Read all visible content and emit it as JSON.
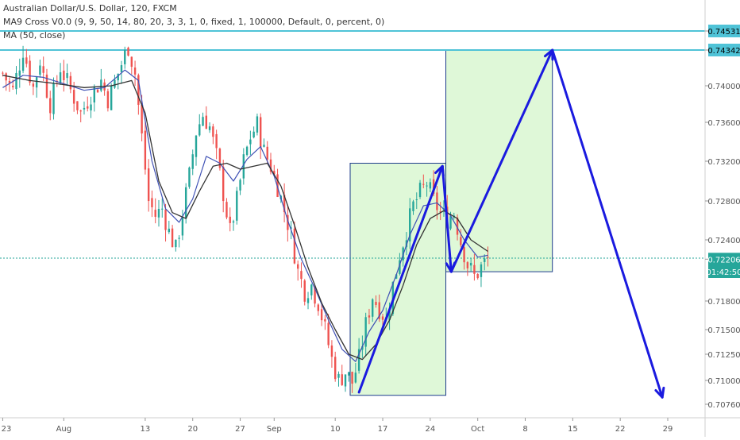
{
  "header": {
    "symbol_line": "Australian Dollar/U.S. Dollar, 120, FXCM",
    "indicator_1": "MA9 Cross V0.0 (9, 9, 50, 14, 80, 20, 3, 3, 1, 0, fixed, 1, 100000, Default, 0, percent, 0)",
    "indicator_2": "MA (50, close)"
  },
  "colors": {
    "up": "#26a69a",
    "down": "#ef5350",
    "ma_fast": "#3f51b5",
    "ma_slow": "#333333",
    "horizontal_line": "#4fc3d7",
    "drawing": "#1a1adf",
    "zone_fill": "#d9f7d1",
    "zone_border": "#1e3c8c",
    "price_badge": "#26a69a",
    "axis_text": "#555555"
  },
  "chart_data": {
    "type": "candlestick",
    "title": "Australian Dollar/U.S. Dollar, 120, FXCM",
    "x_axis": {
      "ticks": [
        {
          "label": "23",
          "day": 0
        },
        {
          "label": "Aug",
          "day": 9
        },
        {
          "label": "13",
          "day": 21
        },
        {
          "label": "20",
          "day": 28
        },
        {
          "label": "27",
          "day": 35
        },
        {
          "label": "Sep",
          "day": 40
        },
        {
          "label": "10",
          "day": 49
        },
        {
          "label": "17",
          "day": 56
        },
        {
          "label": "24",
          "day": 63
        },
        {
          "label": "Oct",
          "day": 70
        },
        {
          "label": "8",
          "day": 77
        },
        {
          "label": "15",
          "day": 84
        },
        {
          "label": "22",
          "day": 91
        },
        {
          "label": "29",
          "day": 98
        }
      ],
      "range": [
        -0.4,
        103.5
      ]
    },
    "y_axis": {
      "ticks": [
        0.7453,
        0.7434,
        0.74,
        0.736,
        0.732,
        0.728,
        0.724,
        0.722,
        0.718,
        0.715,
        0.7125,
        0.71,
        0.7076
      ],
      "tick_labels": [
        "0.74531",
        "0.74342",
        "0.74000",
        "0.73600",
        "0.73200",
        "0.72800",
        "0.72400",
        "0.72206",
        "0.71800",
        "0.71500",
        "0.71250",
        "0.71000",
        "0.70760"
      ],
      "scale": "piecewise",
      "scale_points": [
        {
          "v": 0.7453,
          "y": 39
        },
        {
          "v": 0.7434,
          "y": 63
        },
        {
          "v": 0.74,
          "y": 108
        },
        {
          "v": 0.736,
          "y": 154
        },
        {
          "v": 0.732,
          "y": 203
        },
        {
          "v": 0.728,
          "y": 253
        },
        {
          "v": 0.724,
          "y": 302
        },
        {
          "v": 0.7221,
          "y": 325
        },
        {
          "v": 0.718,
          "y": 379
        },
        {
          "v": 0.715,
          "y": 415
        },
        {
          "v": 0.7125,
          "y": 446
        },
        {
          "v": 0.71,
          "y": 479
        },
        {
          "v": 0.7076,
          "y": 509
        }
      ]
    },
    "price_path": [
      [
        0,
        0.7412
      ],
      [
        1.5,
        0.7395
      ],
      [
        3,
        0.7435
      ],
      [
        4.5,
        0.7398
      ],
      [
        5.5,
        0.7425
      ],
      [
        7,
        0.738
      ],
      [
        8.5,
        0.7418
      ],
      [
        10,
        0.7395
      ],
      [
        11.5,
        0.737
      ],
      [
        13,
        0.739
      ],
      [
        14.5,
        0.7405
      ],
      [
        15.5,
        0.7385
      ],
      [
        17,
        0.7412
      ],
      [
        18.5,
        0.7438
      ],
      [
        19.5,
        0.7412
      ],
      [
        20.5,
        0.7345
      ],
      [
        21.5,
        0.728
      ],
      [
        22.5,
        0.7265
      ],
      [
        23.5,
        0.7272
      ],
      [
        24.5,
        0.7248
      ],
      [
        25.5,
        0.723
      ],
      [
        26.5,
        0.7268
      ],
      [
        27.5,
        0.7305
      ],
      [
        28.5,
        0.735
      ],
      [
        29.5,
        0.7368
      ],
      [
        30.5,
        0.7355
      ],
      [
        31.5,
        0.7325
      ],
      [
        32.5,
        0.7288
      ],
      [
        33.5,
        0.7248
      ],
      [
        34.5,
        0.728
      ],
      [
        35.5,
        0.732
      ],
      [
        36.5,
        0.7345
      ],
      [
        37.5,
        0.7358
      ],
      [
        38.5,
        0.733
      ],
      [
        39.5,
        0.7315
      ],
      [
        40.5,
        0.7295
      ],
      [
        41.5,
        0.727
      ],
      [
        42.5,
        0.7245
      ],
      [
        43.5,
        0.7208
      ],
      [
        44.5,
        0.719
      ],
      [
        45.5,
        0.7195
      ],
      [
        46.5,
        0.7178
      ],
      [
        47.5,
        0.715
      ],
      [
        48.5,
        0.712
      ],
      [
        49.5,
        0.71
      ],
      [
        50.5,
        0.7108
      ],
      [
        51.5,
        0.7098
      ],
      [
        52.5,
        0.712
      ],
      [
        53.5,
        0.7155
      ],
      [
        54.5,
        0.7185
      ],
      [
        55.5,
        0.7172
      ],
      [
        56.5,
        0.716
      ],
      [
        57.5,
        0.7195
      ],
      [
        58.5,
        0.7225
      ],
      [
        59.5,
        0.725
      ],
      [
        60.5,
        0.7275
      ],
      [
        61.5,
        0.7288
      ],
      [
        62.5,
        0.7298
      ],
      [
        63.5,
        0.728
      ],
      [
        64.5,
        0.7268
      ],
      [
        65.5,
        0.7262
      ],
      [
        66.5,
        0.7268
      ],
      [
        67.5,
        0.7238
      ],
      [
        68.5,
        0.7215
      ],
      [
        69.5,
        0.7203
      ],
      [
        70.5,
        0.7212
      ],
      [
        71.5,
        0.722
      ]
    ],
    "ma_fast_path": [
      [
        0,
        0.7398
      ],
      [
        3,
        0.741
      ],
      [
        6,
        0.7408
      ],
      [
        9,
        0.7402
      ],
      [
        12,
        0.7395
      ],
      [
        15,
        0.7398
      ],
      [
        18,
        0.7415
      ],
      [
        20,
        0.7405
      ],
      [
        22,
        0.732
      ],
      [
        24,
        0.7272
      ],
      [
        26,
        0.7258
      ],
      [
        28,
        0.7282
      ],
      [
        30,
        0.7325
      ],
      [
        32,
        0.7318
      ],
      [
        34,
        0.73
      ],
      [
        36,
        0.7322
      ],
      [
        38,
        0.7335
      ],
      [
        40,
        0.7305
      ],
      [
        42,
        0.726
      ],
      [
        44,
        0.722
      ],
      [
        46,
        0.7192
      ],
      [
        48,
        0.716
      ],
      [
        50,
        0.713
      ],
      [
        52,
        0.7118
      ],
      [
        54,
        0.7148
      ],
      [
        56,
        0.717
      ],
      [
        58,
        0.7205
      ],
      [
        60,
        0.7245
      ],
      [
        62,
        0.7275
      ],
      [
        64,
        0.7278
      ],
      [
        66,
        0.7265
      ],
      [
        68,
        0.724
      ],
      [
        70,
        0.7222
      ],
      [
        71.5,
        0.7224
      ]
    ],
    "ma_slow_path": [
      [
        0,
        0.741
      ],
      [
        4,
        0.7405
      ],
      [
        8,
        0.7402
      ],
      [
        12,
        0.7398
      ],
      [
        16,
        0.74
      ],
      [
        19,
        0.7405
      ],
      [
        21,
        0.737
      ],
      [
        23,
        0.73
      ],
      [
        25,
        0.7268
      ],
      [
        27,
        0.7262
      ],
      [
        29,
        0.729
      ],
      [
        31,
        0.7315
      ],
      [
        33,
        0.7318
      ],
      [
        35,
        0.7312
      ],
      [
        37,
        0.7315
      ],
      [
        39,
        0.7318
      ],
      [
        41,
        0.7295
      ],
      [
        43,
        0.7255
      ],
      [
        45,
        0.7212
      ],
      [
        47,
        0.7178
      ],
      [
        49,
        0.715
      ],
      [
        51,
        0.7125
      ],
      [
        53,
        0.712
      ],
      [
        55,
        0.7135
      ],
      [
        57,
        0.716
      ],
      [
        59,
        0.7195
      ],
      [
        61,
        0.7235
      ],
      [
        63,
        0.7262
      ],
      [
        65,
        0.727
      ],
      [
        67,
        0.7262
      ],
      [
        69,
        0.724
      ],
      [
        71.5,
        0.7228
      ]
    ],
    "horizontal_lines": [
      {
        "price": 0.7453,
        "label": "0.74531"
      },
      {
        "price": 0.7434,
        "label": "0.74342"
      }
    ],
    "current_price": {
      "price": 0.7221,
      "label": "0.72206",
      "countdown": "01:42:50"
    },
    "zones": [
      {
        "day_start": 51.2,
        "day_end": 65.3,
        "price_top": 0.7318,
        "price_bottom": 0.7085
      },
      {
        "day_start": 65.3,
        "day_end": 81.0,
        "price_top": 0.7434,
        "price_bottom": 0.7208
      }
    ],
    "projection_path": [
      [
        52.5,
        0.7088
      ],
      [
        64.8,
        0.7315
      ],
      [
        66.1,
        0.7208
      ],
      [
        81.0,
        0.7434
      ],
      [
        97.2,
        0.7083
      ]
    ]
  }
}
